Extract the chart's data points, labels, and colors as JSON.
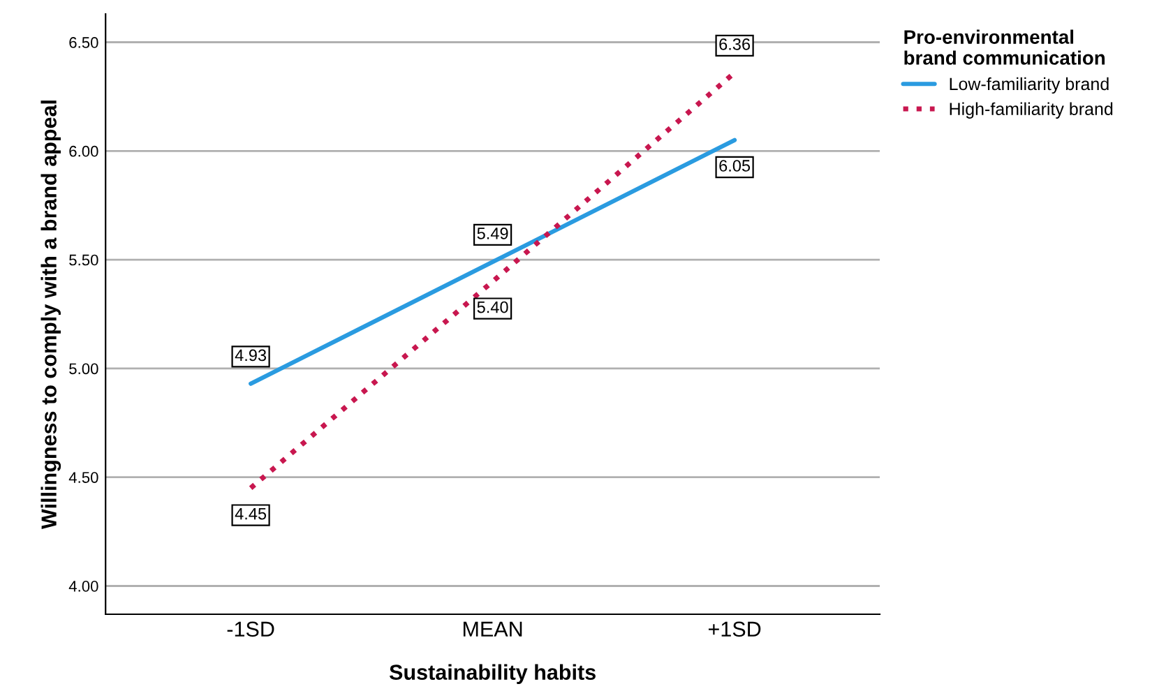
{
  "chart_data": {
    "type": "line",
    "xlabel": "Sustainability habits",
    "ylabel": "Willingness to comply with a brand appeal",
    "legend_title": "Pro-environmental\nbrand communication",
    "categories": [
      "-1SD",
      "MEAN",
      "+1SD"
    ],
    "series": [
      {
        "name": "Low-familiarity brand",
        "color": "#2a9be0",
        "line_style": "solid",
        "values": [
          4.93,
          5.49,
          6.05
        ],
        "value_labels": [
          "4.93",
          "5.49",
          "6.05"
        ]
      },
      {
        "name": "High-familiarity brand",
        "color": "#c8174f",
        "line_style": "dotted",
        "values": [
          4.45,
          5.4,
          6.36
        ],
        "value_labels": [
          "4.45",
          "5.40",
          "6.36"
        ]
      }
    ],
    "ylim": [
      3.87,
      6.63
    ],
    "yticks": [
      {
        "value": 4.0,
        "label": "4.00"
      },
      {
        "value": 4.5,
        "label": "4.50"
      },
      {
        "value": 5.0,
        "label": "5.00"
      },
      {
        "value": 5.5,
        "label": "5.50"
      },
      {
        "value": 6.0,
        "label": "6.00"
      },
      {
        "value": 6.5,
        "label": "6.50"
      }
    ],
    "grid": "y",
    "legend": "top right",
    "marker": "none"
  }
}
